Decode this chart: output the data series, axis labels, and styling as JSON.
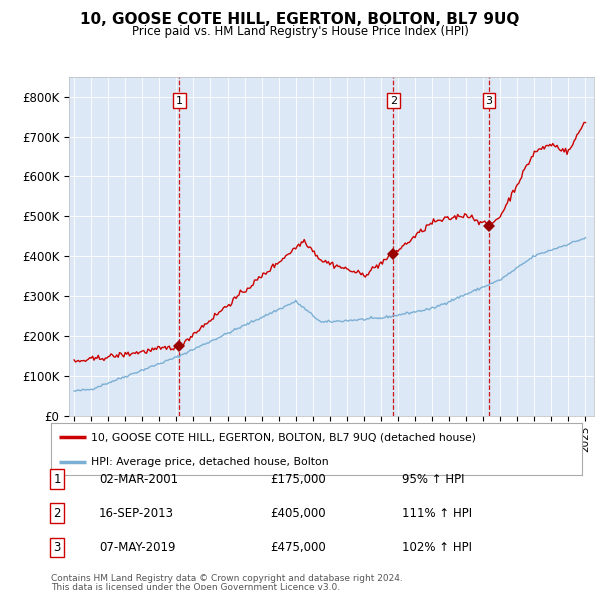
{
  "title": "10, GOOSE COTE HILL, EGERTON, BOLTON, BL7 9UQ",
  "subtitle": "Price paid vs. HM Land Registry's House Price Index (HPI)",
  "bg_color": "#dce8f5",
  "red_line_color": "#cc0000",
  "blue_line_color": "#7bafd4",
  "vline_color": "#cc0000",
  "sale_marker_color": "#990000",
  "ylim": [
    0,
    850000
  ],
  "yticks": [
    0,
    100000,
    200000,
    300000,
    400000,
    500000,
    600000,
    700000,
    800000
  ],
  "ytick_labels": [
    "£0",
    "£100K",
    "£200K",
    "£300K",
    "£400K",
    "£500K",
    "£600K",
    "£700K",
    "£800K"
  ],
  "sales": [
    {
      "date_num": 2001.17,
      "price": 175000,
      "label": "1"
    },
    {
      "date_num": 2013.72,
      "price": 405000,
      "label": "2"
    },
    {
      "date_num": 2019.35,
      "price": 475000,
      "label": "3"
    }
  ],
  "table_rows": [
    {
      "num": "1",
      "date": "02-MAR-2001",
      "price": "£175,000",
      "hpi": "95% ↑ HPI"
    },
    {
      "num": "2",
      "date": "16-SEP-2013",
      "price": "£405,000",
      "hpi": "111% ↑ HPI"
    },
    {
      "num": "3",
      "date": "07-MAY-2019",
      "price": "£475,000",
      "hpi": "102% ↑ HPI"
    }
  ],
  "legend_line1": "10, GOOSE COTE HILL, EGERTON, BOLTON, BL7 9UQ (detached house)",
  "legend_line2": "HPI: Average price, detached house, Bolton",
  "footnote1": "Contains HM Land Registry data © Crown copyright and database right 2024.",
  "footnote2": "This data is licensed under the Open Government Licence v3.0."
}
